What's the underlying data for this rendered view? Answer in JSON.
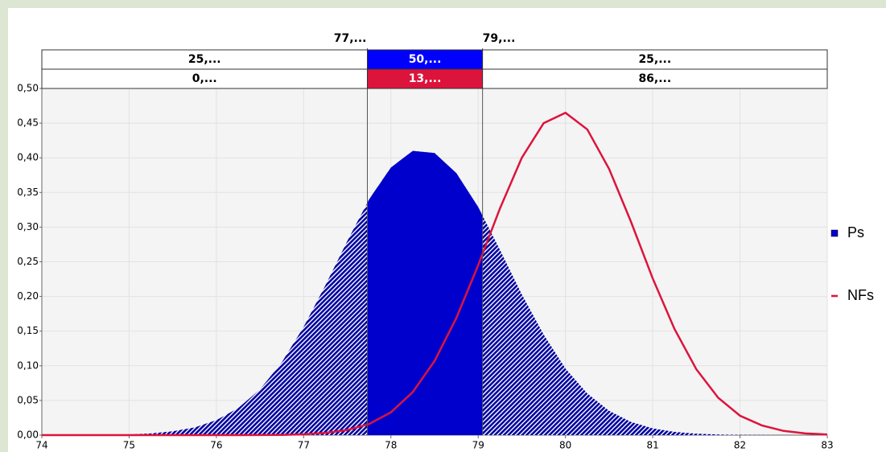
{
  "chart_data": {
    "type": "area_line",
    "x": [
      74,
      74.25,
      74.5,
      74.75,
      75,
      75.25,
      75.5,
      75.75,
      76,
      76.25,
      76.5,
      76.75,
      77,
      77.25,
      77.5,
      77.75,
      78,
      78.25,
      78.5,
      78.75,
      79,
      79.25,
      79.5,
      79.75,
      80,
      80.25,
      80.5,
      80.75,
      81,
      81.25,
      81.5,
      81.75,
      82,
      82.25,
      82.5,
      82.75,
      83
    ],
    "series": [
      {
        "name": "Ps",
        "color": "#0000cd",
        "values": [
          0,
          0.0001,
          0.0002,
          0.0004,
          0.001,
          0.0024,
          0.0054,
          0.011,
          0.0216,
          0.039,
          0.066,
          0.105,
          0.156,
          0.216,
          0.28,
          0.34,
          0.386,
          0.41,
          0.407,
          0.378,
          0.329,
          0.267,
          0.203,
          0.145,
          0.096,
          0.06,
          0.035,
          0.019,
          0.0097,
          0.0046,
          0.0021,
          0.0009,
          0.0003,
          0.0001,
          0,
          0,
          0
        ]
      },
      {
        "name": "NFs",
        "color": "#dc143c",
        "values": [
          0,
          0,
          0,
          0,
          0,
          0,
          0,
          0,
          0,
          0,
          0.0001,
          0.0004,
          0.0012,
          0.0031,
          0.0074,
          0.016,
          0.033,
          0.062,
          0.107,
          0.169,
          0.245,
          0.327,
          0.4,
          0.45,
          0.465,
          0.441,
          0.384,
          0.308,
          0.226,
          0.153,
          0.095,
          0.054,
          0.028,
          0.014,
          0.006,
          0.0024,
          0.0009
        ]
      }
    ],
    "bounds": [
      {
        "value": 77.73,
        "label": "77,..."
      },
      {
        "value": 79.05,
        "label": "79,..."
      }
    ],
    "interval_rows": [
      {
        "color": "#0000ff",
        "labels": [
          "25,...",
          "50,...",
          "25,..."
        ]
      },
      {
        "color": "#dc143c",
        "labels": [
          "0,...",
          "13,...",
          "86,..."
        ]
      }
    ],
    "xlim": [
      74,
      83
    ],
    "xticks": [
      74,
      75,
      76,
      77,
      78,
      79,
      80,
      81,
      82,
      83
    ],
    "ylim": [
      0,
      0.5
    ],
    "yticks": [
      {
        "value": 0,
        "label": "0,00"
      },
      {
        "value": 0.05,
        "label": "0,05"
      },
      {
        "value": 0.1,
        "label": "0,10"
      },
      {
        "value": 0.15,
        "label": "0,15"
      },
      {
        "value": 0.2,
        "label": "0,20"
      },
      {
        "value": 0.25,
        "label": "0,25"
      },
      {
        "value": 0.3,
        "label": "0,30"
      },
      {
        "value": 0.35,
        "label": "0,35"
      },
      {
        "value": 0.4,
        "label": "0,40"
      },
      {
        "value": 0.45,
        "label": "0,45"
      },
      {
        "value": 0.5,
        "label": "0,50"
      }
    ],
    "grid": true,
    "legend": "right"
  }
}
